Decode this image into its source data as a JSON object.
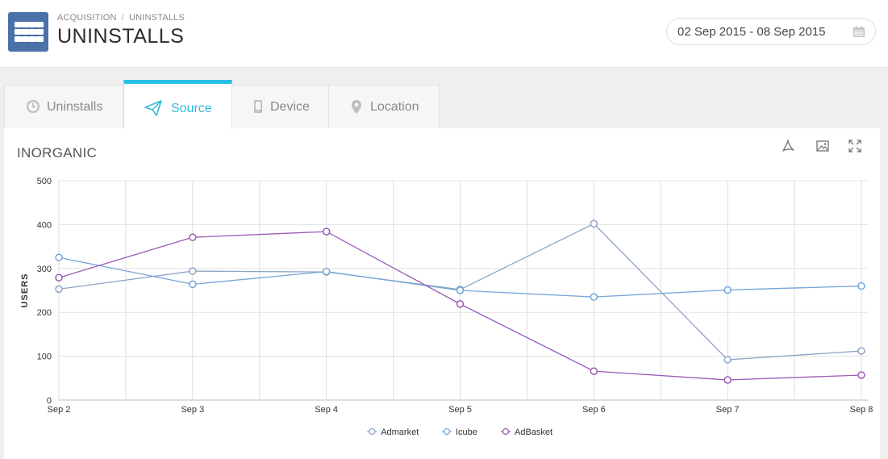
{
  "header": {
    "breadcrumb": [
      "ACQUISITION",
      "UNINSTALLS"
    ],
    "breadcrumb_sep": "/",
    "title": "UNINSTALLS",
    "date_range": "02 Sep 2015 - 08 Sep 2015",
    "icons": {
      "app": "grid-icon",
      "date": "calendar-icon"
    }
  },
  "tabs": [
    {
      "label": "Uninstalls",
      "icon": "clock-icon",
      "active": false
    },
    {
      "label": "Source",
      "icon": "paper-plane-icon",
      "active": true
    },
    {
      "label": "Device",
      "icon": "mobile-icon",
      "active": false
    },
    {
      "label": "Location",
      "icon": "map-pin-icon",
      "active": false
    }
  ],
  "panel": {
    "title": "INORGANIC",
    "tools": [
      "pdf-icon",
      "image-icon",
      "expand-icon"
    ]
  },
  "colors": {
    "accent": "#27c2e6",
    "header_icon_bg": "#4a72a8"
  },
  "chart_data": {
    "type": "line",
    "ylabel": "USERS",
    "xlabel": "",
    "ylim": [
      0,
      500
    ],
    "yticks": [
      0,
      100,
      200,
      300,
      400,
      500
    ],
    "categories": [
      "Sep 2",
      "Sep 3",
      "Sep 4",
      "Sep 5",
      "Sep 6",
      "Sep 7",
      "Sep 8"
    ],
    "grid": true,
    "legend_position": "bottom",
    "series": [
      {
        "name": "Admarket",
        "color": "#8fa3c7",
        "values": [
          253,
          294,
          292,
          252,
          402,
          92,
          112
        ]
      },
      {
        "name": "Icube",
        "color": "#75a5d8",
        "values": [
          325,
          264,
          293,
          250,
          235,
          251,
          260
        ]
      },
      {
        "name": "AdBasket",
        "color": "#9b59b6",
        "values": [
          279,
          371,
          384,
          219,
          66,
          46,
          57
        ]
      }
    ]
  }
}
